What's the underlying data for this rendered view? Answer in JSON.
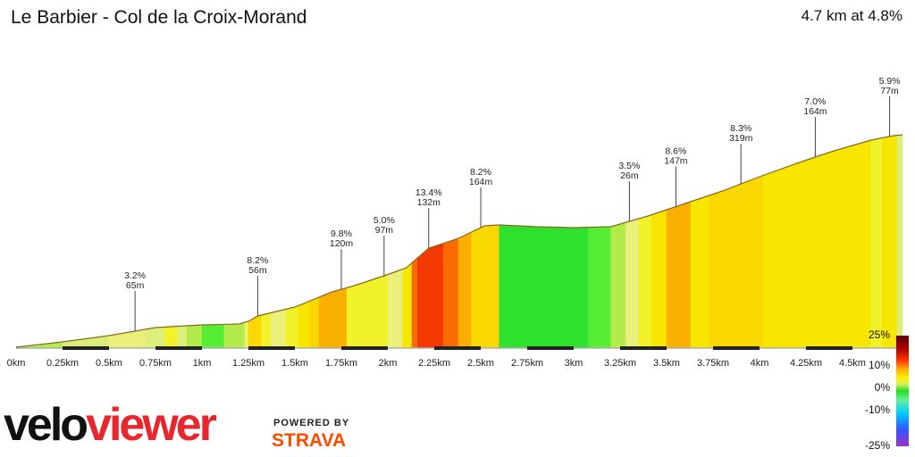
{
  "header": {
    "title": "Le Barbier - Col de la Croix-Morand",
    "summary": "4.7 km at 4.8%"
  },
  "branding": {
    "velo": "velo",
    "viewer": "viewer",
    "powered_by": "POWERED BY",
    "strava": "STRAVA"
  },
  "chart_data": {
    "type": "area",
    "title": "Le Barbier - Col de la Croix-Morand",
    "xlim": [
      0,
      4.9
    ],
    "ylim": [
      0,
      240
    ],
    "x_ticks": [
      "0km",
      "0.25km",
      "0.5km",
      "0.75km",
      "1km",
      "1.25km",
      "1.5km",
      "1.75km",
      "2km",
      "2.25km",
      "2.5km",
      "2.75km",
      "3km",
      "3.25km",
      "3.5km",
      "3.75km",
      "4km",
      "4.25km",
      "4.5km"
    ],
    "profile": [
      [
        0.0,
        0
      ],
      [
        0.25,
        6
      ],
      [
        0.5,
        13
      ],
      [
        0.75,
        22
      ],
      [
        1.0,
        25
      ],
      [
        1.2,
        26
      ],
      [
        1.25,
        29
      ],
      [
        1.3,
        35
      ],
      [
        1.5,
        45
      ],
      [
        1.7,
        62
      ],
      [
        1.82,
        69
      ],
      [
        1.98,
        80
      ],
      [
        2.1,
        89
      ],
      [
        2.22,
        111
      ],
      [
        2.38,
        122
      ],
      [
        2.52,
        136
      ],
      [
        2.6,
        137
      ],
      [
        2.8,
        135
      ],
      [
        3.0,
        134
      ],
      [
        3.2,
        135
      ],
      [
        3.4,
        147
      ],
      [
        3.6,
        161
      ],
      [
        3.8,
        175
      ],
      [
        4.0,
        191
      ],
      [
        4.2,
        206
      ],
      [
        4.4,
        220
      ],
      [
        4.6,
        232
      ],
      [
        4.72,
        237
      ],
      [
        4.77,
        238
      ]
    ],
    "segments": [
      {
        "x0": 0.0,
        "x1": 0.12,
        "grade": 1.0
      },
      {
        "x0": 0.12,
        "x1": 0.25,
        "grade": 1.8
      },
      {
        "x0": 0.25,
        "x1": 0.5,
        "grade": 2.2
      },
      {
        "x0": 0.5,
        "x1": 0.62,
        "grade": 3.2
      },
      {
        "x0": 0.62,
        "x1": 0.7,
        "grade": 4.0
      },
      {
        "x0": 0.7,
        "x1": 0.8,
        "grade": 2.5
      },
      {
        "x0": 0.8,
        "x1": 0.87,
        "grade": 4.5
      },
      {
        "x0": 0.87,
        "x1": 0.92,
        "grade": 2.0
      },
      {
        "x0": 0.92,
        "x1": 1.0,
        "grade": 1.2
      },
      {
        "x0": 1.0,
        "x1": 1.12,
        "grade": 0.8
      },
      {
        "x0": 1.12,
        "x1": 1.23,
        "grade": 1.0
      },
      {
        "x0": 1.23,
        "x1": 1.25,
        "grade": 3.0
      },
      {
        "x0": 1.25,
        "x1": 1.32,
        "grade": 8.2
      },
      {
        "x0": 1.32,
        "x1": 1.37,
        "grade": 5.5
      },
      {
        "x0": 1.37,
        "x1": 1.45,
        "grade": 4.0
      },
      {
        "x0": 1.45,
        "x1": 1.52,
        "grade": 5.0
      },
      {
        "x0": 1.52,
        "x1": 1.58,
        "grade": 6.5
      },
      {
        "x0": 1.58,
        "x1": 1.63,
        "grade": 7.5
      },
      {
        "x0": 1.63,
        "x1": 1.78,
        "grade": 9.8
      },
      {
        "x0": 1.78,
        "x1": 1.85,
        "grade": 5.5
      },
      {
        "x0": 1.85,
        "x1": 1.93,
        "grade": 4.5
      },
      {
        "x0": 1.93,
        "x1": 2.0,
        "grade": 5.0
      },
      {
        "x0": 2.0,
        "x1": 2.08,
        "grade": 4.0
      },
      {
        "x0": 2.08,
        "x1": 2.13,
        "grade": 6.0
      },
      {
        "x0": 2.13,
        "x1": 2.16,
        "grade": 10.5
      },
      {
        "x0": 2.16,
        "x1": 2.3,
        "grade": 13.4
      },
      {
        "x0": 2.3,
        "x1": 2.38,
        "grade": 11.0
      },
      {
        "x0": 2.38,
        "x1": 2.45,
        "grade": 8.5
      },
      {
        "x0": 2.45,
        "x1": 2.6,
        "grade": 8.2
      },
      {
        "x0": 2.6,
        "x1": 2.62,
        "grade": -1.0
      },
      {
        "x0": 2.62,
        "x1": 2.77,
        "grade": -0.2
      },
      {
        "x0": 2.77,
        "x1": 2.93,
        "grade": -0.5
      },
      {
        "x0": 2.93,
        "x1": 3.08,
        "grade": -0.4
      },
      {
        "x0": 3.08,
        "x1": 3.2,
        "grade": 0.3
      },
      {
        "x0": 3.2,
        "x1": 3.28,
        "grade": 1.2
      },
      {
        "x0": 3.28,
        "x1": 3.35,
        "grade": 3.5
      },
      {
        "x0": 3.35,
        "x1": 3.42,
        "grade": 5.0
      },
      {
        "x0": 3.42,
        "x1": 3.5,
        "grade": 6.0
      },
      {
        "x0": 3.5,
        "x1": 3.63,
        "grade": 8.6
      },
      {
        "x0": 3.63,
        "x1": 3.73,
        "grade": 7.0
      },
      {
        "x0": 3.73,
        "x1": 4.02,
        "grade": 8.3
      },
      {
        "x0": 4.02,
        "x1": 4.22,
        "grade": 7.0
      },
      {
        "x0": 4.22,
        "x1": 4.4,
        "grade": 6.2
      },
      {
        "x0": 4.4,
        "x1": 4.5,
        "grade": 7.0
      },
      {
        "x0": 4.5,
        "x1": 4.6,
        "grade": 6.0
      },
      {
        "x0": 4.6,
        "x1": 4.66,
        "grade": 5.0
      },
      {
        "x0": 4.66,
        "x1": 4.74,
        "grade": 5.9
      },
      {
        "x0": 4.74,
        "x1": 4.77,
        "grade": 2.0
      }
    ],
    "annotations": [
      {
        "x": 0.64,
        "grade": "3.2%",
        "dist": "65m"
      },
      {
        "x": 1.3,
        "grade": "8.2%",
        "dist": "56m"
      },
      {
        "x": 1.75,
        "grade": "9.8%",
        "dist": "120m"
      },
      {
        "x": 1.98,
        "grade": "5.0%",
        "dist": "97m"
      },
      {
        "x": 2.22,
        "grade": "13.4%",
        "dist": "132m"
      },
      {
        "x": 2.5,
        "grade": "8.2%",
        "dist": "164m"
      },
      {
        "x": 3.3,
        "grade": "3.5%",
        "dist": "26m"
      },
      {
        "x": 3.55,
        "grade": "8.6%",
        "dist": "147m"
      },
      {
        "x": 3.9,
        "grade": "8.3%",
        "dist": "319m"
      },
      {
        "x": 4.3,
        "grade": "7.0%",
        "dist": "164m"
      },
      {
        "x": 4.7,
        "grade": "5.9%",
        "dist": "77m"
      }
    ],
    "legend": {
      "labels": [
        "25%",
        "10%",
        "0%",
        "-10%",
        "-25%"
      ],
      "colors": [
        "#5a0000",
        "#b00000",
        "#ff3300",
        "#ffaa00",
        "#ffee00",
        "#d4f060",
        "#22dd22",
        "#66ee99",
        "#00ccff",
        "#3355ff",
        "#9933cc"
      ]
    }
  }
}
